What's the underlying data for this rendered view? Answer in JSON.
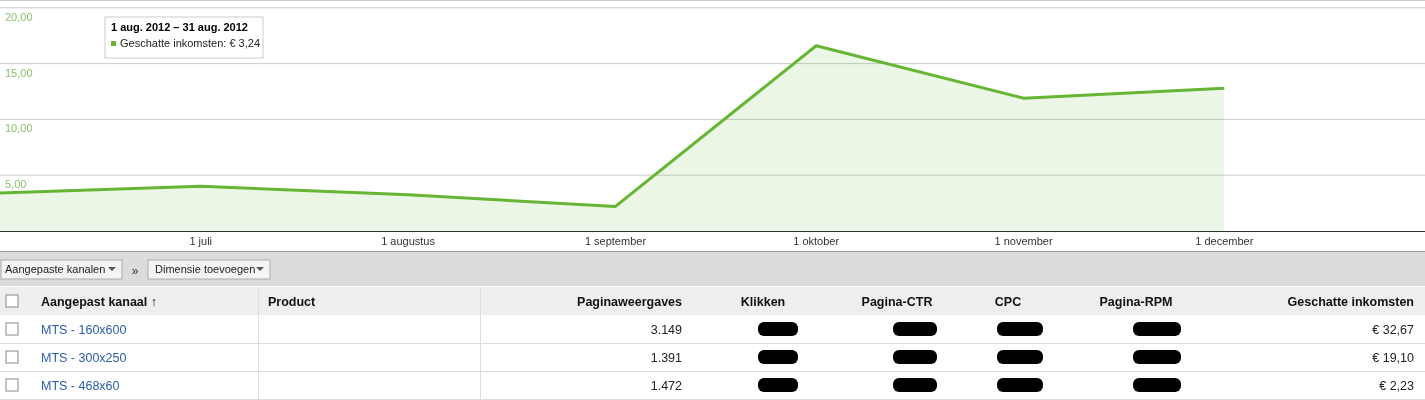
{
  "chart_data": [
    {
      "type": "area",
      "x": [
        "2012-06-01",
        "2012-07-01",
        "2012-08-01",
        "2012-09-01",
        "2012-10-01",
        "2012-11-01",
        "2012-12-01"
      ],
      "series": [
        {
          "color": "#66b534",
          "values": [
            3.4,
            4.0,
            3.24,
            2.2,
            16.6,
            11.9,
            12.8
          ]
        }
      ],
      "xlim": [
        "2012-06-01",
        "2012-12-31"
      ],
      "xticks": [
        {
          "value": "2012-07-01",
          "label": "1 juli"
        },
        {
          "value": "2012-08-01",
          "label": "1 augustus"
        },
        {
          "value": "2012-09-01",
          "label": "1 september"
        },
        {
          "value": "2012-10-01",
          "label": "1 oktober"
        },
        {
          "value": "2012-11-01",
          "label": "1 november"
        },
        {
          "value": "2012-12-01",
          "label": "1 december"
        }
      ],
      "ylim": [
        0,
        20.7
      ],
      "yticks": [
        {
          "value": 5,
          "label": "5,00"
        },
        {
          "value": 10,
          "label": "10,00"
        },
        {
          "value": 15,
          "label": "15,00"
        },
        {
          "value": 20,
          "label": "20,00"
        }
      ],
      "grid": "y",
      "marker": "none",
      "annotations": [
        "1 aug. 2012 – 31 aug. 2012",
        "Geschatte inkomsten: € 3,24"
      ]
    },
    {
      "type": "other",
      "annotations": [
        "Aangepaste kanalen",
        "»",
        "Dimensie toevoegen",
        "Aangepast kanaal ↑",
        "Product",
        "Paginaweergaves",
        "Klikken",
        "Pagina-CTR",
        "CPC",
        "Pagina-RPM",
        "Geschatte inkomsten",
        "MTS - 160x600",
        "3.149",
        "€ 32,67",
        "MTS - 300x250",
        "1.391",
        "€ 19,10",
        "MTS - 468x60",
        "1.472",
        "€ 2,23"
      ]
    }
  ]
}
